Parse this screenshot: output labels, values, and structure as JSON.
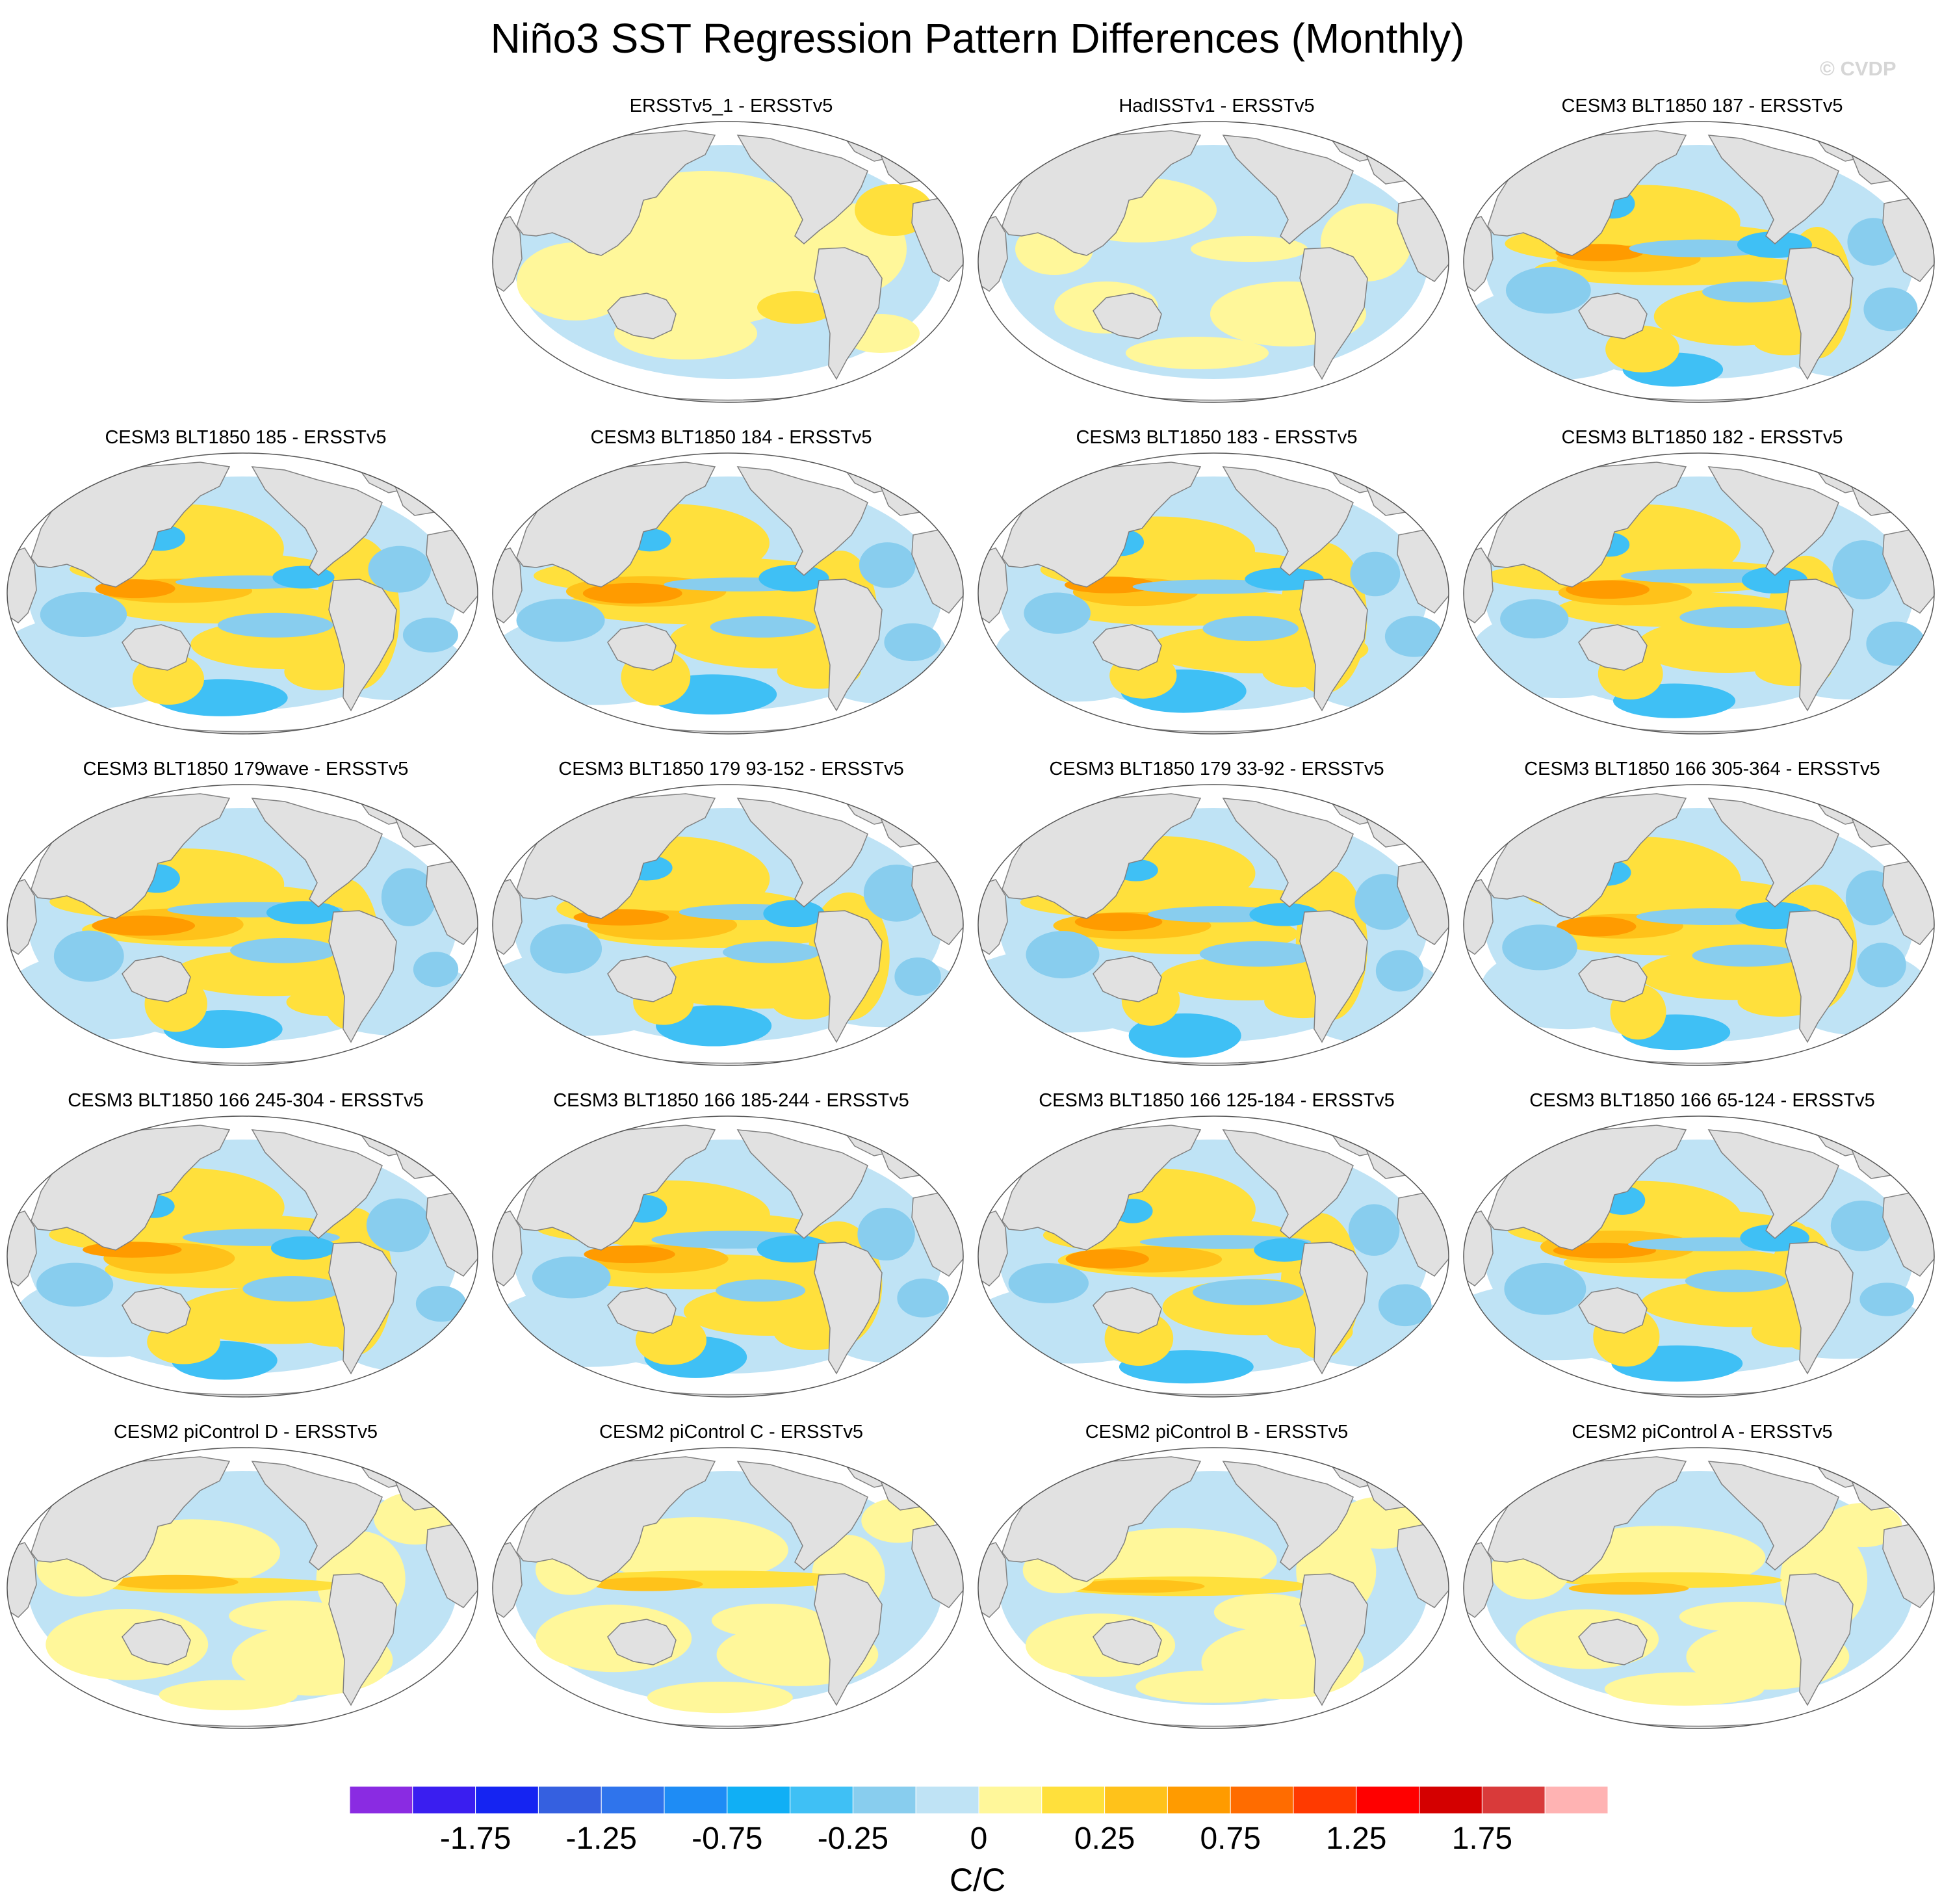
{
  "title": "Niño3 SST Regression Pattern Differences (Monthly)",
  "watermark": "© CVDP",
  "chart_data": {
    "type": "heatmap",
    "projection": "global map (Robinson-like), Pacific-centered",
    "colorbar": {
      "unit": "C/C",
      "tick_labels": [
        "-1.75",
        "-1.25",
        "-0.75",
        "-0.25",
        "0",
        "0.25",
        "0.75",
        "1.25",
        "1.75"
      ],
      "colors": [
        "#8a2be2",
        "#3a1ef0",
        "#1524f2",
        "#3560e0",
        "#2f74ec",
        "#1e8cf5",
        "#10aff5",
        "#3fc0f5",
        "#88cdee",
        "#bfe3f5",
        "#fff79a",
        "#ffe03c",
        "#ffc21a",
        "#ff9b00",
        "#ff6c00",
        "#ff3a00",
        "#ff0000",
        "#d40000",
        "#d93a3a",
        "#ffb3b3"
      ]
    },
    "panels": [
      {
        "label": "ERSSTv5_1 - ERSSTv5",
        "style": "weak-warm"
      },
      {
        "label": "HadISSTv1 - ERSSTv5",
        "style": "weak-mixed"
      },
      {
        "label": "CESM3 BLT1850 187 - ERSSTv5",
        "style": "strong"
      },
      {
        "label": "CESM3 BLT1850 185 - ERSSTv5",
        "style": "strong"
      },
      {
        "label": "CESM3 BLT1850 184 - ERSSTv5",
        "style": "strong"
      },
      {
        "label": "CESM3 BLT1850 183 - ERSSTv5",
        "style": "strong"
      },
      {
        "label": "CESM3 BLT1850 182 - ERSSTv5",
        "style": "strong"
      },
      {
        "label": "CESM3 BLT1850 179wave - ERSSTv5",
        "style": "strong"
      },
      {
        "label": "CESM3 BLT1850 179 93-152 - ERSSTv5",
        "style": "strong"
      },
      {
        "label": "CESM3 BLT1850 179 33-92 - ERSSTv5",
        "style": "strong"
      },
      {
        "label": "CESM3 BLT1850 166 305-364 - ERSSTv5",
        "style": "strong"
      },
      {
        "label": "CESM3 BLT1850 166 245-304 - ERSSTv5",
        "style": "strong"
      },
      {
        "label": "CESM3 BLT1850 166 185-244 - ERSSTv5",
        "style": "strong"
      },
      {
        "label": "CESM3 BLT1850 166 125-184 - ERSSTv5",
        "style": "strong"
      },
      {
        "label": "CESM3 BLT1850 166 65-124 - ERSSTv5",
        "style": "strong"
      },
      {
        "label": "CESM2 piControl D - ERSSTv5",
        "style": "moderate"
      },
      {
        "label": "CESM2 piControl C - ERSSTv5",
        "style": "moderate"
      },
      {
        "label": "CESM2 piControl B - ERSSTv5",
        "style": "moderate"
      },
      {
        "label": "CESM2 piControl A - ERSSTv5",
        "style": "moderate"
      }
    ]
  }
}
